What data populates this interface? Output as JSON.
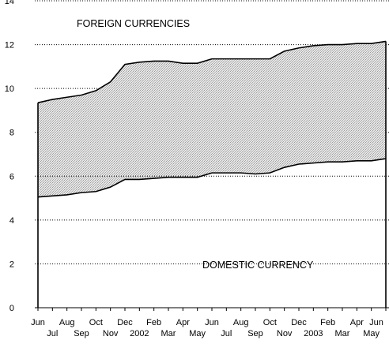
{
  "chart_data": {
    "type": "area",
    "title": "",
    "xlabel": "",
    "ylabel": "",
    "ylim": [
      0,
      14
    ],
    "yticks": [
      0,
      2,
      4,
      6,
      8,
      10,
      12,
      14
    ],
    "grid": "horizontal dotted",
    "x": [
      "Jun",
      "Jul",
      "Aug",
      "Sep",
      "Oct",
      "Nov",
      "Dec",
      "2002",
      "Feb",
      "Mar",
      "Apr",
      "May",
      "Jun",
      "Jul",
      "Aug",
      "Sep",
      "Oct",
      "Nov",
      "Dec",
      "2003",
      "Feb",
      "Mar",
      "Apr",
      "May",
      "Jun"
    ],
    "x_labels_top": [
      "Jun",
      "Aug",
      "Oct",
      "Dec",
      "Feb",
      "Apr",
      "Jun",
      "Aug",
      "Oct",
      "Dec",
      "Feb",
      "Apr",
      "Jun"
    ],
    "x_labels_bottom": [
      "Jul",
      "Sep",
      "Nov",
      "2002",
      "Mar",
      "May",
      "Jul",
      "Sep",
      "Nov",
      "2003",
      "Mar",
      "May"
    ],
    "series": [
      {
        "name": "DOMESTIC CURRENCY",
        "values": [
          5.05,
          5.1,
          5.15,
          5.25,
          5.3,
          5.5,
          5.85,
          5.85,
          5.9,
          5.95,
          5.95,
          5.95,
          6.15,
          6.15,
          6.15,
          6.1,
          6.15,
          6.4,
          6.55,
          6.6,
          6.65,
          6.65,
          6.7,
          6.7,
          6.8
        ]
      },
      {
        "name": "FOREIGN CURRENCIES",
        "values": [
          4.3,
          4.4,
          4.45,
          4.45,
          4.6,
          4.8,
          5.25,
          5.35,
          5.35,
          5.3,
          5.2,
          5.2,
          5.2,
          5.2,
          5.2,
          5.25,
          5.2,
          5.3,
          5.3,
          5.35,
          5.35,
          5.35,
          5.35,
          5.35,
          5.35
        ]
      }
    ],
    "annotations": [
      "FOREIGN CURRENCIES",
      "DOMESTIC CURRENCY"
    ],
    "colors": {
      "foreign_fill": "#d4d4d4",
      "domestic_fill": "#ffffff",
      "line": "#000000"
    }
  }
}
